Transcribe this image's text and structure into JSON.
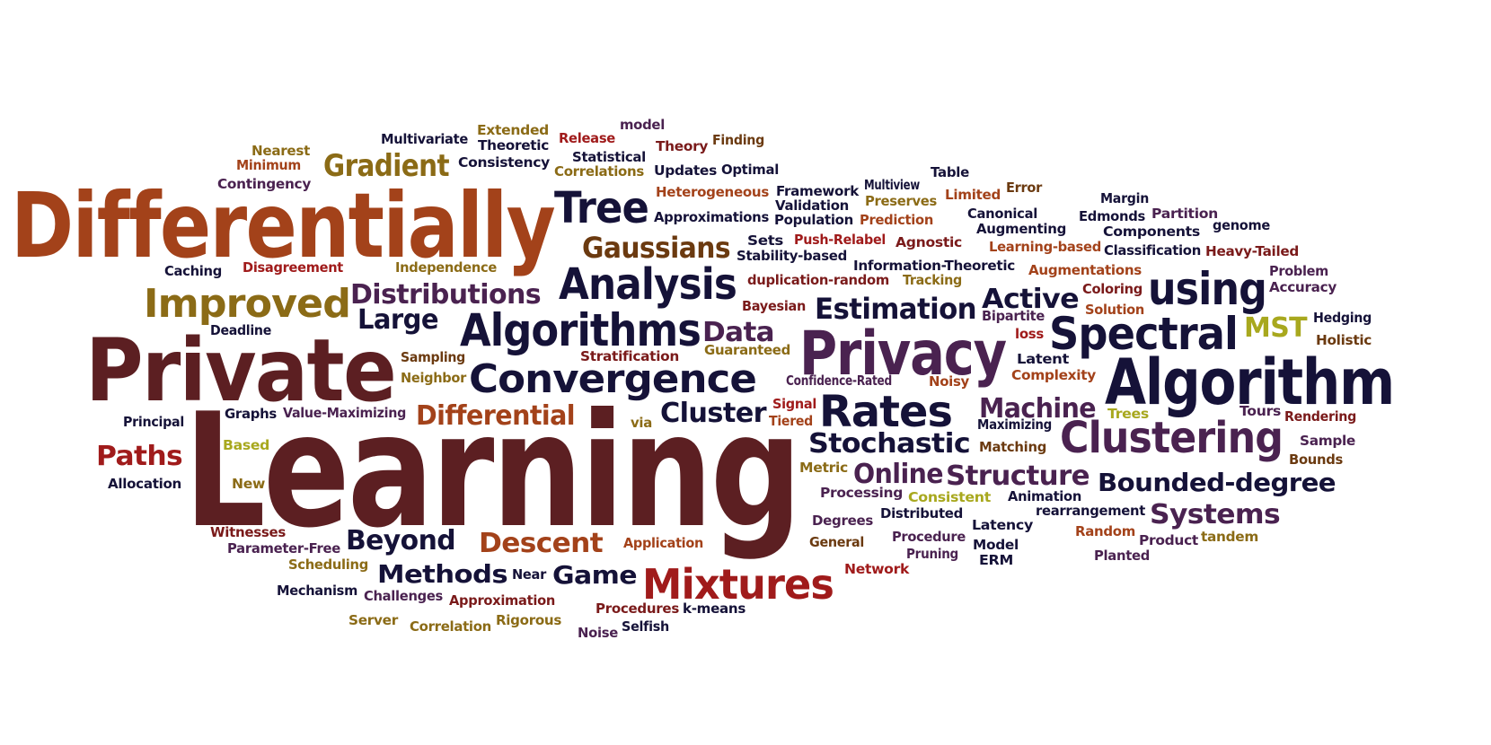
{
  "palette": {
    "navy": "#151238",
    "maroon": "#5c1f22",
    "rust": "#a3421a",
    "olive": "#8b6b16",
    "purple": "#4a2250",
    "red": "#a01b1b",
    "brown": "#6b3a10",
    "lime": "#a8a81e",
    "darkred": "#7a1a1a"
  },
  "words": [
    {
      "text": "Learning",
      "color": "maroon"
    },
    {
      "text": "Differentially",
      "color": "rust"
    },
    {
      "text": "Private",
      "color": "maroon"
    },
    {
      "text": "Privacy",
      "color": "purple"
    },
    {
      "text": "Algorithm",
      "color": "navy"
    },
    {
      "text": "Algorithms",
      "color": "navy"
    },
    {
      "text": "Convergence",
      "color": "navy"
    },
    {
      "text": "Analysis",
      "color": "navy"
    },
    {
      "text": "Spectral",
      "color": "navy"
    },
    {
      "text": "Clustering",
      "color": "purple"
    },
    {
      "text": "Mixtures",
      "color": "red"
    },
    {
      "text": "Rates",
      "color": "navy"
    },
    {
      "text": "Tree",
      "color": "navy"
    },
    {
      "text": "Improved",
      "color": "olive"
    },
    {
      "text": "using",
      "color": "navy"
    },
    {
      "text": "Gaussians",
      "color": "brown"
    },
    {
      "text": "Gradient",
      "color": "olive"
    },
    {
      "text": "Distributions",
      "color": "purple"
    },
    {
      "text": "Estimation",
      "color": "navy"
    },
    {
      "text": "Active",
      "color": "navy"
    },
    {
      "text": "Data",
      "color": "purple"
    },
    {
      "text": "Machine",
      "color": "purple"
    },
    {
      "text": "Cluster",
      "color": "navy"
    },
    {
      "text": "Differential",
      "color": "rust"
    },
    {
      "text": "Large",
      "color": "navy"
    },
    {
      "text": "Stochastic",
      "color": "navy"
    },
    {
      "text": "Structure",
      "color": "purple"
    },
    {
      "text": "Online",
      "color": "purple"
    },
    {
      "text": "Bounded-degree",
      "color": "navy"
    },
    {
      "text": "Systems",
      "color": "purple"
    },
    {
      "text": "Beyond",
      "color": "navy"
    },
    {
      "text": "Descent",
      "color": "rust"
    },
    {
      "text": "Methods",
      "color": "navy"
    },
    {
      "text": "Game",
      "color": "navy"
    },
    {
      "text": "Paths",
      "color": "red"
    },
    {
      "text": "MST",
      "color": "lime"
    },
    {
      "text": "Multivariate",
      "color": "navy"
    },
    {
      "text": "Extended",
      "color": "olive"
    },
    {
      "text": "model",
      "color": "purple"
    },
    {
      "text": "Theoretic",
      "color": "navy"
    },
    {
      "text": "Release",
      "color": "red"
    },
    {
      "text": "Theory",
      "color": "darkred"
    },
    {
      "text": "Finding",
      "color": "brown"
    },
    {
      "text": "Nearest",
      "color": "olive"
    },
    {
      "text": "Minimum",
      "color": "rust"
    },
    {
      "text": "Statistical",
      "color": "navy"
    },
    {
      "text": "Consistency",
      "color": "navy"
    },
    {
      "text": "Correlations",
      "color": "olive"
    },
    {
      "text": "Updates",
      "color": "navy"
    },
    {
      "text": "Optimal",
      "color": "navy"
    },
    {
      "text": "Table",
      "color": "navy"
    },
    {
      "text": "Contingency",
      "color": "purple"
    },
    {
      "text": "Error",
      "color": "brown"
    },
    {
      "text": "Multiview",
      "color": "navy"
    },
    {
      "text": "Framework",
      "color": "navy"
    },
    {
      "text": "Limited",
      "color": "rust"
    },
    {
      "text": "Heterogeneous",
      "color": "rust"
    },
    {
      "text": "Preserves",
      "color": "olive"
    },
    {
      "text": "Validation",
      "color": "navy"
    },
    {
      "text": "Margin",
      "color": "navy"
    },
    {
      "text": "Canonical",
      "color": "navy"
    },
    {
      "text": "Partition",
      "color": "purple"
    },
    {
      "text": "Approximations",
      "color": "navy"
    },
    {
      "text": "Population",
      "color": "navy"
    },
    {
      "text": "Prediction",
      "color": "rust"
    },
    {
      "text": "Edmonds",
      "color": "navy"
    },
    {
      "text": "genome",
      "color": "navy"
    },
    {
      "text": "Augmenting",
      "color": "navy"
    },
    {
      "text": "Sets",
      "color": "navy"
    },
    {
      "text": "Push-Relabel",
      "color": "red"
    },
    {
      "text": "Agnostic",
      "color": "darkred"
    },
    {
      "text": "Components",
      "color": "navy"
    },
    {
      "text": "Learning-based",
      "color": "rust"
    },
    {
      "text": "Stability-based",
      "color": "navy"
    },
    {
      "text": "Classification",
      "color": "navy"
    },
    {
      "text": "Heavy-Tailed",
      "color": "darkred"
    },
    {
      "text": "Caching",
      "color": "navy"
    },
    {
      "text": "Disagreement",
      "color": "red"
    },
    {
      "text": "Independence",
      "color": "olive"
    },
    {
      "text": "Information-Theoretic",
      "color": "navy"
    },
    {
      "text": "Augmentations",
      "color": "rust"
    },
    {
      "text": "Problem",
      "color": "purple"
    },
    {
      "text": "duplication-random",
      "color": "darkred"
    },
    {
      "text": "Tracking",
      "color": "olive"
    },
    {
      "text": "Accuracy",
      "color": "purple"
    },
    {
      "text": "Coloring",
      "color": "darkred"
    },
    {
      "text": "Bayesian",
      "color": "darkred"
    },
    {
      "text": "Solution",
      "color": "rust"
    },
    {
      "text": "Bipartite",
      "color": "purple"
    },
    {
      "text": "Hedging",
      "color": "navy"
    },
    {
      "text": "Deadline",
      "color": "navy"
    },
    {
      "text": "loss",
      "color": "red"
    },
    {
      "text": "Holistic",
      "color": "brown"
    },
    {
      "text": "Sampling",
      "color": "brown"
    },
    {
      "text": "Stratification",
      "color": "darkred"
    },
    {
      "text": "Guaranteed",
      "color": "olive"
    },
    {
      "text": "Latent",
      "color": "navy"
    },
    {
      "text": "Neighbor",
      "color": "olive"
    },
    {
      "text": "Complexity",
      "color": "rust"
    },
    {
      "text": "Confidence-Rated",
      "color": "purple"
    },
    {
      "text": "Noisy",
      "color": "rust"
    },
    {
      "text": "Signal",
      "color": "red"
    },
    {
      "text": "Principal",
      "color": "navy"
    },
    {
      "text": "Graphs",
      "color": "navy"
    },
    {
      "text": "Value-Maximizing",
      "color": "purple"
    },
    {
      "text": "via",
      "color": "olive"
    },
    {
      "text": "Tiered",
      "color": "rust"
    },
    {
      "text": "Maximizing",
      "color": "navy"
    },
    {
      "text": "Trees",
      "color": "lime"
    },
    {
      "text": "Tours",
      "color": "purple"
    },
    {
      "text": "Rendering",
      "color": "darkred"
    },
    {
      "text": "Matching",
      "color": "brown"
    },
    {
      "text": "Sample",
      "color": "purple"
    },
    {
      "text": "Based",
      "color": "lime"
    },
    {
      "text": "Metric",
      "color": "olive"
    },
    {
      "text": "Bounds",
      "color": "brown"
    },
    {
      "text": "Allocation",
      "color": "navy"
    },
    {
      "text": "New",
      "color": "olive"
    },
    {
      "text": "Processing",
      "color": "purple"
    },
    {
      "text": "Consistent",
      "color": "lime"
    },
    {
      "text": "Animation",
      "color": "navy"
    },
    {
      "text": "rearrangement",
      "color": "navy"
    },
    {
      "text": "Degrees",
      "color": "purple"
    },
    {
      "text": "Distributed",
      "color": "navy"
    },
    {
      "text": "Latency",
      "color": "navy"
    },
    {
      "text": "Witnesses",
      "color": "darkred"
    },
    {
      "text": "Random",
      "color": "rust"
    },
    {
      "text": "tandem",
      "color": "olive"
    },
    {
      "text": "Application",
      "color": "rust"
    },
    {
      "text": "General",
      "color": "brown"
    },
    {
      "text": "Procedure",
      "color": "purple"
    },
    {
      "text": "Model",
      "color": "navy"
    },
    {
      "text": "Product",
      "color": "purple"
    },
    {
      "text": "Parameter-Free",
      "color": "purple"
    },
    {
      "text": "Pruning",
      "color": "purple"
    },
    {
      "text": "ERM",
      "color": "navy"
    },
    {
      "text": "Planted",
      "color": "purple"
    },
    {
      "text": "Scheduling",
      "color": "olive"
    },
    {
      "text": "Network",
      "color": "red"
    },
    {
      "text": "Near",
      "color": "navy"
    },
    {
      "text": "Mechanism",
      "color": "navy"
    },
    {
      "text": "Challenges",
      "color": "purple"
    },
    {
      "text": "Approximation",
      "color": "darkred"
    },
    {
      "text": "Procedures",
      "color": "darkred"
    },
    {
      "text": "k-means",
      "color": "navy"
    },
    {
      "text": "Server",
      "color": "olive"
    },
    {
      "text": "Correlation",
      "color": "olive"
    },
    {
      "text": "Rigorous",
      "color": "olive"
    },
    {
      "text": "Selfish",
      "color": "navy"
    },
    {
      "text": "Noise",
      "color": "purple"
    }
  ]
}
